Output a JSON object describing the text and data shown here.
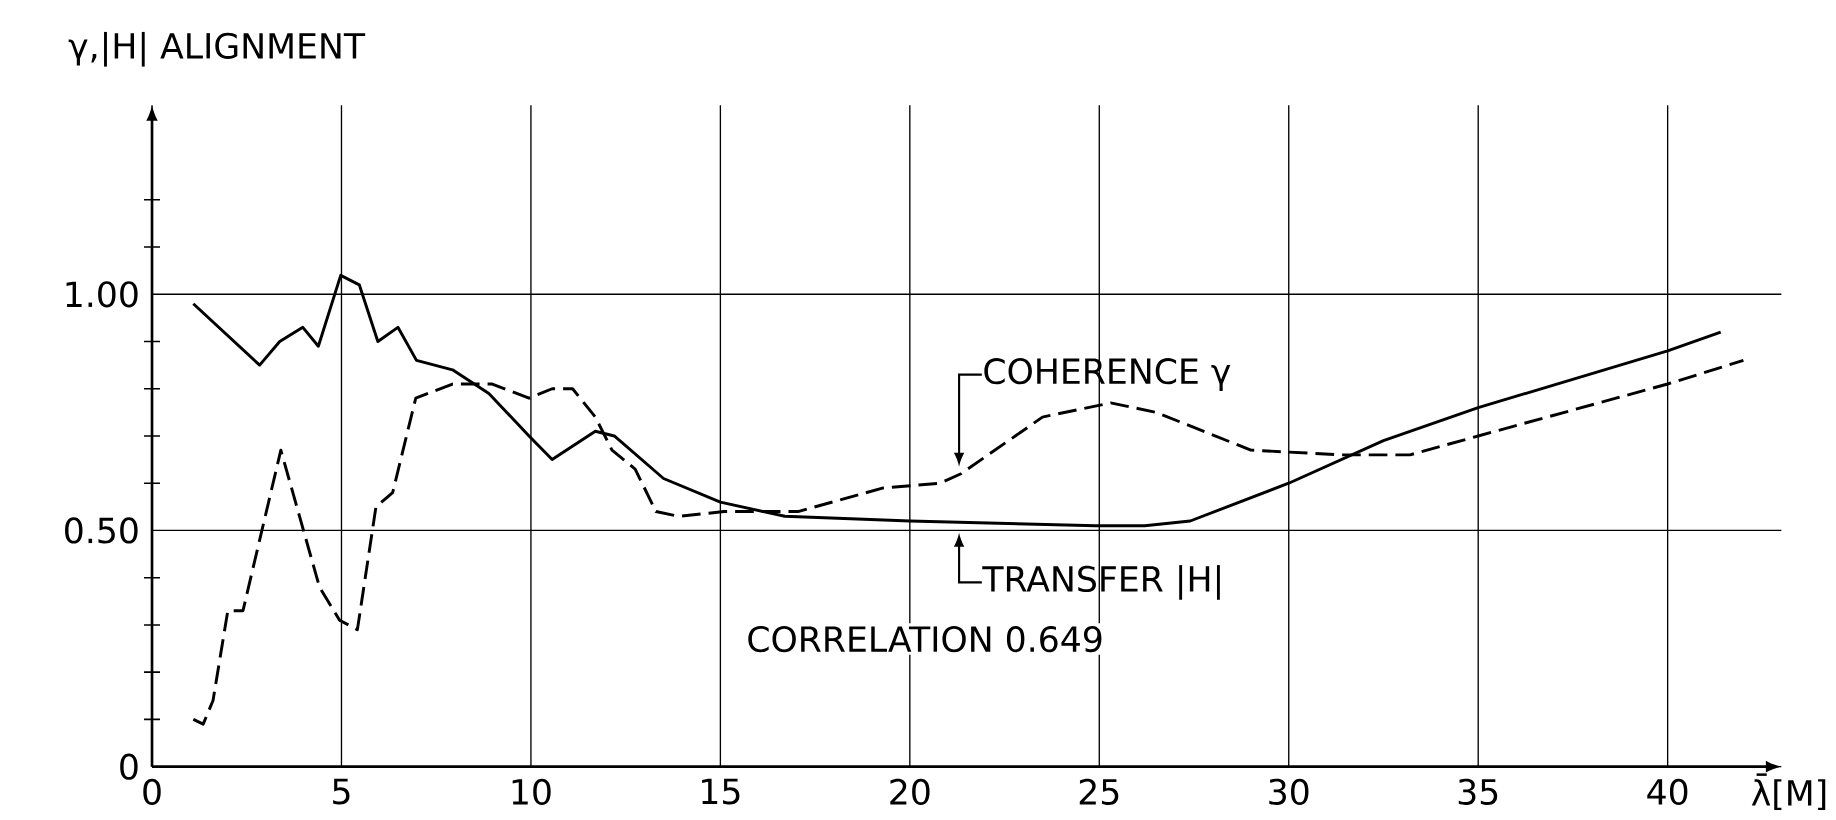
{
  "chart_data": {
    "type": "line",
    "xlabel": "λ̄[M]",
    "ylabel": "γ,|H| ALIGNMENT",
    "xlim": [
      0,
      43
    ],
    "ylim": [
      0,
      1.4
    ],
    "xticks": [
      0,
      5,
      10,
      15,
      20,
      25,
      30,
      35,
      40
    ],
    "yticks": [
      0,
      {
        "value": 0.1,
        "label": null
      },
      {
        "value": 0.2,
        "label": null
      },
      {
        "value": 0.3,
        "label": null
      },
      {
        "value": 0.4,
        "label": null
      },
      {
        "value": 0.5,
        "label": "0.50"
      },
      {
        "value": 0.6,
        "label": null
      },
      {
        "value": 0.7,
        "label": null
      },
      {
        "value": 0.8,
        "label": null
      },
      {
        "value": 0.9,
        "label": null
      },
      {
        "value": 1.0,
        "label": "1.00"
      },
      {
        "value": 1.1,
        "label": null
      },
      {
        "value": 1.2,
        "label": null
      }
    ],
    "grid": true,
    "marker": "none",
    "series": [
      {
        "color": "#000000",
        "line_style": "solid",
        "x": [
          1.09,
          2.84,
          3.37,
          3.98,
          4.39,
          4.98,
          5.47,
          5.96,
          6.49,
          6.98,
          7.93,
          8.89,
          9.95,
          10.56,
          11.7,
          12.2,
          13.5,
          15.0,
          16.7,
          20.0,
          24.9,
          26.2,
          27.4,
          30.0,
          32.5,
          35.0,
          40.0,
          41.4
        ],
        "values": [
          0.98,
          0.85,
          0.9,
          0.93,
          0.89,
          1.04,
          1.02,
          0.9,
          0.93,
          0.86,
          0.84,
          0.79,
          0.7,
          0.65,
          0.71,
          0.7,
          0.61,
          0.56,
          0.53,
          0.52,
          0.51,
          0.51,
          0.52,
          0.6,
          0.69,
          0.76,
          0.88,
          0.92
        ]
      },
      {
        "color": "#000000",
        "line_style": "dashed",
        "x": [
          1.09,
          1.35,
          1.61,
          2.0,
          2.4,
          3.4,
          4.42,
          4.95,
          5.42,
          5.91,
          6.35,
          6.96,
          7.93,
          8.98,
          9.95,
          10.56,
          11.1,
          11.7,
          12.14,
          12.75,
          13.3,
          13.9,
          15.1,
          17.05,
          19.3,
          20.8,
          21.35,
          23.5,
          25.3,
          26.5,
          29.0,
          31.4,
          33.2,
          35.0,
          40.0,
          42.0
        ],
        "values": [
          0.1,
          0.09,
          0.14,
          0.33,
          0.33,
          0.67,
          0.38,
          0.31,
          0.29,
          0.55,
          0.58,
          0.78,
          0.81,
          0.81,
          0.78,
          0.8,
          0.8,
          0.74,
          0.67,
          0.63,
          0.54,
          0.53,
          0.54,
          0.54,
          0.59,
          0.6,
          0.62,
          0.74,
          0.77,
          0.75,
          0.67,
          0.66,
          0.66,
          0.7,
          0.81,
          0.86
        ]
      }
    ],
    "annotations": [
      {
        "text": "COHERENCE γ",
        "x": 21.3,
        "y": 0.62
      },
      {
        "text": "TRANSFER |H|",
        "x": 21.3,
        "y": 0.51
      },
      "CORRELATION 0.649"
    ]
  }
}
